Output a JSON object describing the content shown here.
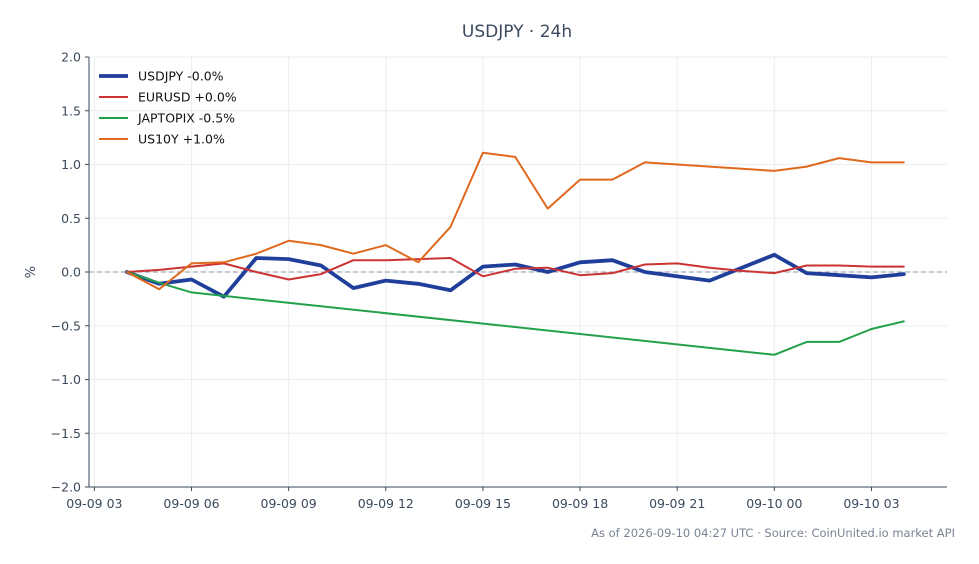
{
  "chart_data": {
    "type": "line",
    "title": "USDJPY · 24h",
    "ylabel": "%",
    "xlabel": "",
    "ylim": [
      -2.0,
      2.0
    ],
    "yticks": [
      -2.0,
      -1.5,
      -1.0,
      -0.5,
      0.0,
      0.5,
      1.0,
      1.5,
      2.0
    ],
    "ytick_labels": [
      "−2.0",
      "−1.5",
      "−1.0",
      "−0.5",
      "0.0",
      "0.5",
      "1.0",
      "1.5",
      "2.0"
    ],
    "xlim": [
      "2026-09-09 02:50",
      "2026-09-10 05:20"
    ],
    "xticks": [
      "2026-09-09 03:00",
      "2026-09-09 06:00",
      "2026-09-09 09:00",
      "2026-09-09 12:00",
      "2026-09-09 15:00",
      "2026-09-09 18:00",
      "2026-09-09 21:00",
      "2026-09-10 00:00",
      "2026-09-10 03:00"
    ],
    "xtick_labels": [
      "09-09 03",
      "09-09 06",
      "09-09 09",
      "09-09 12",
      "09-09 15",
      "09-09 18",
      "09-09 21",
      "09-10 00",
      "09-10 03"
    ],
    "grid": true,
    "legend_position": "top-left",
    "zero_line": {
      "y": 0,
      "style": "dashed",
      "color": "#8a93a6"
    },
    "series": [
      {
        "name": "USDJPY -0.0%",
        "color": "#1f3f9a",
        "line_width": "thick",
        "x": [
          "2026-09-09 04:00",
          "2026-09-09 05:00",
          "2026-09-09 06:00",
          "2026-09-09 07:00",
          "2026-09-09 08:00",
          "2026-09-09 09:00",
          "2026-09-09 10:00",
          "2026-09-09 11:00",
          "2026-09-09 12:00",
          "2026-09-09 13:00",
          "2026-09-09 14:00",
          "2026-09-09 15:00",
          "2026-09-09 16:00",
          "2026-09-09 17:00",
          "2026-09-09 18:00",
          "2026-09-09 19:00",
          "2026-09-09 20:00",
          "2026-09-09 22:00",
          "2026-09-10 00:00",
          "2026-09-10 01:00",
          "2026-09-10 02:00",
          "2026-09-10 03:00",
          "2026-09-10 04:00"
        ],
        "y": [
          0.0,
          -0.11,
          -0.07,
          -0.23,
          0.13,
          0.12,
          0.06,
          -0.15,
          -0.08,
          -0.11,
          -0.17,
          0.05,
          0.07,
          0.0,
          0.09,
          0.11,
          0.0,
          -0.08,
          0.16,
          -0.01,
          -0.03,
          -0.05,
          -0.02
        ]
      },
      {
        "name": "EURUSD +0.0%",
        "color": "#cc3333",
        "line_width": "normal",
        "x": [
          "2026-09-09 04:00",
          "2026-09-09 05:00",
          "2026-09-09 06:00",
          "2026-09-09 07:00",
          "2026-09-09 08:00",
          "2026-09-09 09:00",
          "2026-09-09 10:00",
          "2026-09-09 11:00",
          "2026-09-09 12:00",
          "2026-09-09 13:00",
          "2026-09-09 14:00",
          "2026-09-09 15:00",
          "2026-09-09 16:00",
          "2026-09-09 17:00",
          "2026-09-09 18:00",
          "2026-09-09 19:00",
          "2026-09-09 20:00",
          "2026-09-09 21:00",
          "2026-09-09 22:00",
          "2026-09-09 23:00",
          "2026-09-10 00:00",
          "2026-09-10 01:00",
          "2026-09-10 02:00",
          "2026-09-10 03:00",
          "2026-09-10 04:00"
        ],
        "y": [
          0.0,
          0.02,
          0.05,
          0.08,
          0.0,
          -0.07,
          -0.02,
          0.11,
          0.11,
          0.12,
          0.13,
          -0.04,
          0.03,
          0.04,
          -0.03,
          -0.01,
          0.07,
          0.08,
          0.04,
          0.01,
          -0.01,
          0.06,
          0.06,
          0.05,
          0.05
        ]
      },
      {
        "name": "JAPTOPIX -0.5%",
        "color": "#22a04a",
        "line_width": "normal",
        "x": [
          "2026-09-09 04:00",
          "2026-09-09 05:00",
          "2026-09-09 06:00",
          "2026-09-10 00:00",
          "2026-09-10 01:00",
          "2026-09-10 02:00",
          "2026-09-10 03:00",
          "2026-09-10 04:00"
        ],
        "y": [
          0.0,
          -0.1,
          -0.19,
          -0.77,
          -0.65,
          -0.65,
          -0.53,
          -0.46
        ]
      },
      {
        "name": "US10Y +1.0%",
        "color": "#e0691e",
        "line_width": "normal",
        "x": [
          "2026-09-09 04:00",
          "2026-09-09 05:00",
          "2026-09-09 06:00",
          "2026-09-09 07:00",
          "2026-09-09 08:00",
          "2026-09-09 09:00",
          "2026-09-09 10:00",
          "2026-09-09 11:00",
          "2026-09-09 12:00",
          "2026-09-09 13:00",
          "2026-09-09 14:00",
          "2026-09-09 15:00",
          "2026-09-09 16:00",
          "2026-09-09 17:00",
          "2026-09-09 18:00",
          "2026-09-09 19:00",
          "2026-09-09 20:00",
          "2026-09-10 00:00",
          "2026-09-10 01:00",
          "2026-09-10 02:00",
          "2026-09-10 03:00",
          "2026-09-10 04:00"
        ],
        "y": [
          0.0,
          -0.16,
          0.08,
          0.09,
          0.17,
          0.29,
          0.25,
          0.17,
          0.25,
          0.09,
          0.42,
          1.11,
          1.07,
          0.59,
          0.86,
          0.86,
          1.02,
          0.94,
          0.98,
          1.06,
          1.02,
          1.02
        ]
      }
    ]
  },
  "footer": "As of 2026-09-10 04:27 UTC · Source: CoinUnited.io market API"
}
